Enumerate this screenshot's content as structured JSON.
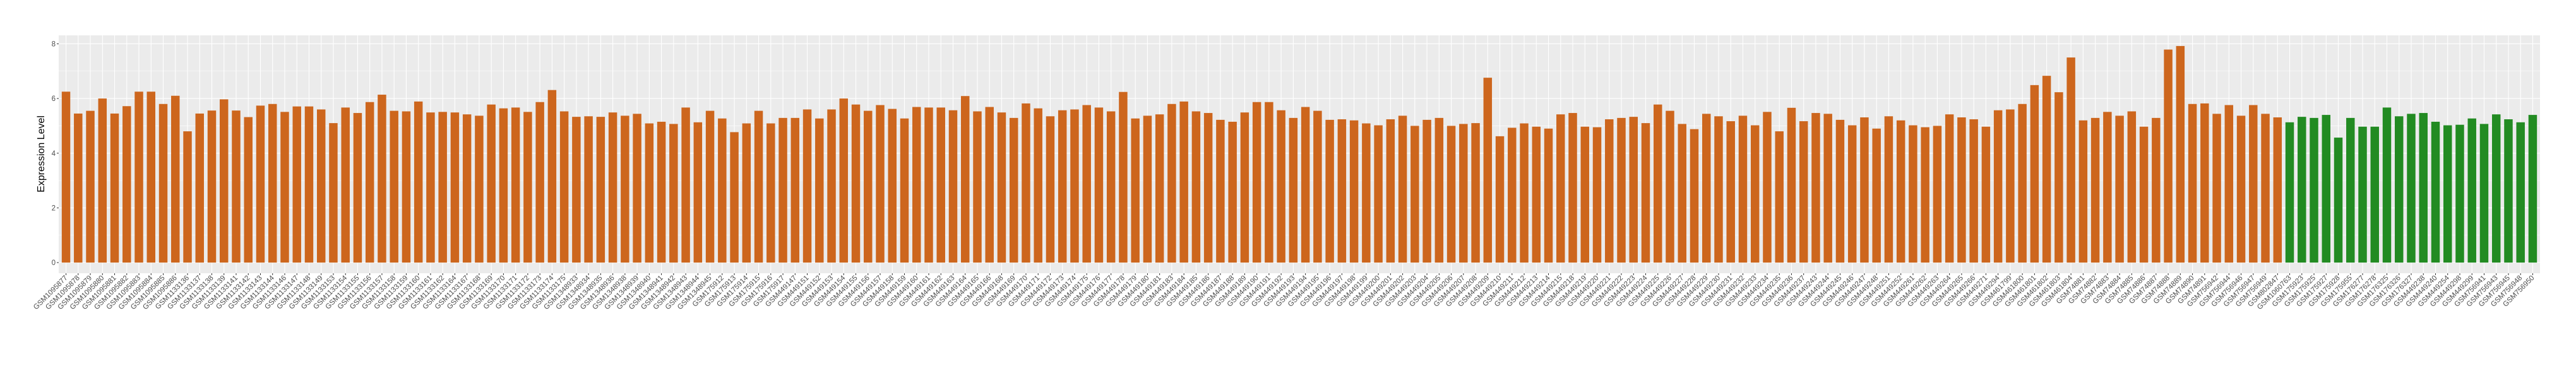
{
  "chart_data": {
    "type": "bar",
    "title": "",
    "xlabel": "",
    "ylabel": "Expression Level",
    "ylim": [
      -0.39,
      8.31
    ],
    "yticks": [
      0,
      2,
      4,
      6,
      8
    ],
    "ytick_labels": [
      "0",
      "2",
      "4",
      "6",
      "8"
    ],
    "grid": true,
    "legend": "none",
    "panel_background": "#EBEBEB",
    "series": [
      {
        "color": "#CD661D",
        "categories": [
          "GSM1095877",
          "GSM1095878",
          "GSM1095879",
          "GSM1095880",
          "GSM1095881",
          "GSM1095882",
          "GSM1095883",
          "GSM1095884",
          "GSM1095885",
          "GSM1095886",
          "GSM1133136",
          "GSM1133137",
          "GSM1133138",
          "GSM1133139",
          "GSM1133141",
          "GSM1133142",
          "GSM1133143",
          "GSM1133144",
          "GSM1133146",
          "GSM1133147",
          "GSM1133148",
          "GSM1133149",
          "GSM1133153",
          "GSM1133154",
          "GSM1133155",
          "GSM1133156",
          "GSM1133157",
          "GSM1133158",
          "GSM1133159",
          "GSM1133160",
          "GSM1133161",
          "GSM1133162",
          "GSM1133164",
          "GSM1133167",
          "GSM1133168",
          "GSM1133169",
          "GSM1133170",
          "GSM1133171",
          "GSM1133172",
          "GSM1133173",
          "GSM1133174",
          "GSM1133175",
          "GSM1348933",
          "GSM1348934",
          "GSM1348935",
          "GSM1348936",
          "GSM1348938",
          "GSM1348939",
          "GSM1348940",
          "GSM1348941",
          "GSM1348942",
          "GSM1348943",
          "GSM1348944",
          "GSM1348945",
          "GSM175912",
          "GSM175913",
          "GSM175914",
          "GSM175915",
          "GSM175916",
          "GSM175917",
          "GSM449147",
          "GSM449151",
          "GSM449152",
          "GSM449153",
          "GSM449154",
          "GSM449155",
          "GSM449156",
          "GSM449157",
          "GSM449158",
          "GSM449159",
          "GSM449160",
          "GSM449161",
          "GSM449162",
          "GSM449163",
          "GSM449164",
          "GSM449165",
          "GSM449166",
          "GSM449168",
          "GSM449169",
          "GSM449170",
          "GSM449171",
          "GSM449172",
          "GSM449173",
          "GSM449174",
          "GSM449175",
          "GSM449176",
          "GSM449177",
          "GSM449178",
          "GSM449179",
          "GSM449180",
          "GSM449181",
          "GSM449183",
          "GSM449184",
          "GSM449185",
          "GSM449186",
          "GSM449187",
          "GSM449188",
          "GSM449189",
          "GSM449190",
          "GSM449191",
          "GSM449192",
          "GSM449193",
          "GSM449194",
          "GSM449195",
          "GSM449196",
          "GSM449197",
          "GSM449198",
          "GSM449199",
          "GSM449200",
          "GSM449201",
          "GSM449202",
          "GSM449203",
          "GSM449204",
          "GSM449205",
          "GSM449206",
          "GSM449207",
          "GSM449208",
          "GSM449209",
          "GSM449210",
          "GSM449211",
          "GSM449212",
          "GSM449213",
          "GSM449214",
          "GSM449215",
          "GSM449218",
          "GSM449219",
          "GSM449220",
          "GSM449221",
          "GSM449222",
          "GSM449223",
          "GSM449224",
          "GSM449225",
          "GSM449226",
          "GSM449227",
          "GSM449228",
          "GSM449229",
          "GSM449230",
          "GSM449231",
          "GSM449232",
          "GSM449233",
          "GSM449234",
          "GSM449235",
          "GSM449236",
          "GSM449237",
          "GSM449243",
          "GSM449244",
          "GSM449245",
          "GSM449246",
          "GSM449247",
          "GSM449248",
          "GSM449251",
          "GSM449252",
          "GSM449261",
          "GSM449262",
          "GSM449263",
          "GSM449264",
          "GSM449265",
          "GSM449266",
          "GSM449271",
          "GSM449294",
          "GSM461799",
          "GSM461800",
          "GSM461801",
          "GSM461802",
          "GSM461803",
          "GSM461804",
          "GSM74881",
          "GSM74882",
          "GSM74883",
          "GSM74884",
          "GSM74885",
          "GSM74886",
          "GSM74887",
          "GSM74888",
          "GSM74889",
          "GSM74890",
          "GSM74891",
          "GSM756942",
          "GSM756944",
          "GSM756946",
          "GSM756947",
          "GSM756949",
          "GSM802847"
        ],
        "values": [
          6.25,
          5.45,
          5.55,
          6.0,
          5.45,
          5.72,
          6.25,
          6.25,
          5.8,
          6.1,
          4.8,
          5.45,
          5.56,
          5.97,
          5.56,
          5.32,
          5.74,
          5.8,
          5.51,
          5.71,
          5.71,
          5.6,
          5.1,
          5.67,
          5.47,
          5.87,
          6.14,
          5.55,
          5.53,
          5.89,
          5.49,
          5.51,
          5.49,
          5.42,
          5.37,
          5.78,
          5.64,
          5.67,
          5.51,
          5.87,
          6.31,
          5.53,
          5.33,
          5.35,
          5.33,
          5.49,
          5.37,
          5.44,
          5.09,
          5.15,
          5.07,
          5.67,
          5.13,
          5.55,
          5.27,
          4.77,
          5.09,
          5.55,
          5.09,
          5.29,
          5.29,
          5.6,
          5.27,
          5.6,
          6.0,
          5.78,
          5.55,
          5.76,
          5.62,
          5.27,
          5.69,
          5.67,
          5.67,
          5.57,
          6.09,
          5.53,
          5.69,
          5.49,
          5.29,
          5.82,
          5.64,
          5.35,
          5.57,
          5.6,
          5.76,
          5.67,
          5.53,
          6.24,
          5.27,
          5.37,
          5.42,
          5.8,
          5.89,
          5.53,
          5.47,
          5.22,
          5.15,
          5.49,
          5.87,
          5.87,
          5.57,
          5.29,
          5.69,
          5.55,
          5.22,
          5.24,
          5.2,
          5.09,
          5.02,
          5.24,
          5.37,
          5.0,
          5.22,
          5.29,
          5.0,
          5.07,
          5.1,
          6.76,
          4.62,
          4.93,
          5.09,
          4.97,
          4.9,
          5.42,
          5.47,
          4.97,
          4.95,
          5.24,
          5.29,
          5.33,
          5.1,
          5.78,
          5.55,
          5.07,
          4.88,
          5.44,
          5.35,
          5.17,
          5.37,
          5.02,
          5.51,
          4.8,
          5.66,
          5.17,
          5.47,
          5.44,
          5.22,
          5.02,
          5.31,
          4.9,
          5.35,
          5.2,
          5.02,
          4.95,
          5.0,
          5.42,
          5.31,
          5.24,
          4.97,
          5.57,
          5.6,
          5.8,
          6.49,
          6.83,
          6.23,
          7.5,
          5.2,
          5.29,
          5.51,
          5.37,
          5.53,
          4.97,
          5.29,
          7.79,
          7.92,
          5.8,
          5.82,
          5.44,
          5.76,
          5.37,
          5.76,
          5.44,
          5.31
        ]
      },
      {
        "color": "#228B22",
        "categories": [
          "GSM1060763",
          "GSM175923",
          "GSM175925",
          "GSM175927",
          "GSM175928",
          "GSM175955",
          "GSM176277",
          "GSM176278",
          "GSM176325",
          "GSM176326",
          "GSM176327",
          "GSM449238",
          "GSM449240",
          "GSM449254",
          "GSM449298",
          "GSM449299",
          "GSM756941",
          "GSM756943",
          "GSM756945",
          "GSM756948",
          "GSM756950"
        ],
        "values": [
          5.13,
          5.33,
          5.29,
          5.4,
          4.57,
          5.29,
          4.97,
          4.97,
          5.67,
          5.35,
          5.44,
          5.47,
          5.15,
          5.02,
          5.04,
          5.27,
          5.07,
          5.42,
          5.24,
          5.13,
          5.4
        ]
      }
    ]
  }
}
